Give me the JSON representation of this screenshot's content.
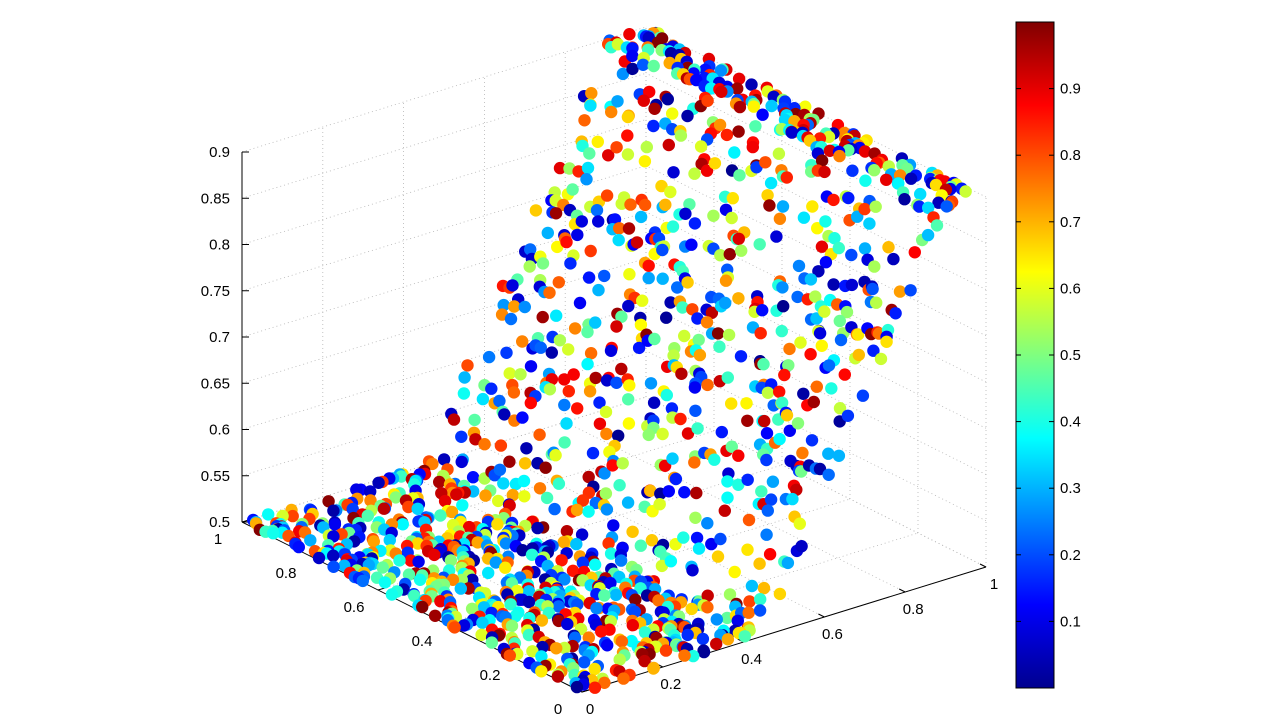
{
  "chart_data": {
    "type": "scatter",
    "title": "",
    "xlabel": "",
    "ylabel": "",
    "zlabel": "",
    "grid": true,
    "projection": "3d",
    "xlim": [
      0,
      1
    ],
    "ylim": [
      0,
      1
    ],
    "zlim": [
      0.5,
      0.9
    ],
    "x_ticks": [
      "0",
      "0.2",
      "0.4",
      "0.6",
      "0.8",
      "1"
    ],
    "y_ticks": [
      "0",
      "0.2",
      "0.4",
      "0.6",
      "0.8",
      "1"
    ],
    "z_ticks": [
      "0.5",
      "0.55",
      "0.6",
      "0.65",
      "0.7",
      "0.75",
      "0.8",
      "0.85",
      "0.9"
    ],
    "surface": {
      "description_of_shape": "z = 0.5 for x < 0.45, rising linearly to 0.9 at x = 0.9, flat at 0.9 beyond",
      "z_low": 0.5,
      "z_high": 0.9,
      "ramp_start_x": 0.45,
      "ramp_end_x": 0.9
    },
    "color_by": "value",
    "point_count": 1500,
    "colorbar": {
      "ticks": [
        "0.1",
        "0.2",
        "0.3",
        "0.4",
        "0.5",
        "0.6",
        "0.7",
        "0.8",
        "0.9"
      ],
      "range": [
        0,
        1
      ],
      "colormap": "jet",
      "colors": [
        "#00008f",
        "#0000ff",
        "#00ffff",
        "#ffff00",
        "#ff0000",
        "#800000"
      ]
    }
  }
}
